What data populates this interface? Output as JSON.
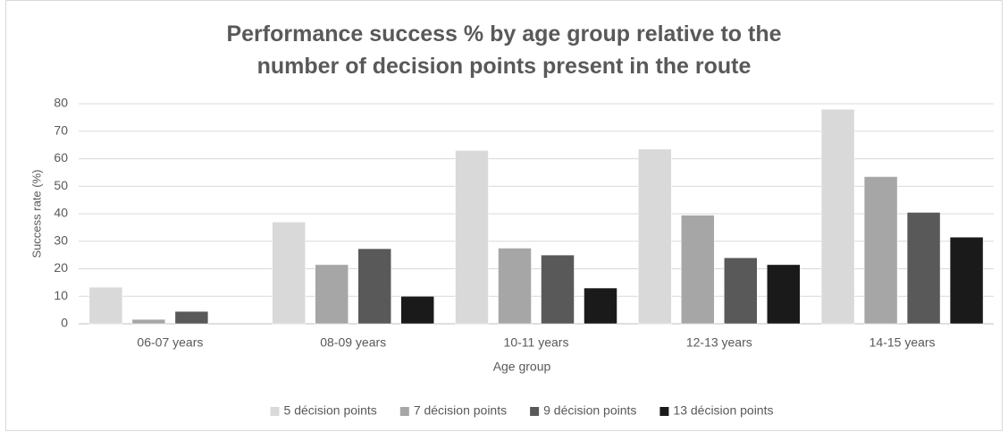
{
  "chart_data": {
    "type": "bar",
    "title": "Performance success % by age group relative to the number of decision points present in the route",
    "x_label": "Age group",
    "y_label": "Success rate (%)",
    "categories": [
      "06-07 years",
      "08-09 years",
      "10-11 years",
      "12-13 years",
      "14-15 years"
    ],
    "series": [
      {
        "name": "5 décision points",
        "color": "#d9d9d9",
        "values": [
          13.3,
          37,
          63,
          63.5,
          78
        ]
      },
      {
        "name": "7 décision points",
        "color": "#a6a6a6",
        "values": [
          1.6,
          21.5,
          27.5,
          39.5,
          53.5
        ]
      },
      {
        "name": "9 décision points",
        "color": "#595959",
        "values": [
          4.5,
          27.3,
          25,
          24,
          40.5
        ]
      },
      {
        "name": "13 décision points",
        "color": "#1a1a1a",
        "values": [
          0,
          10,
          13,
          21.5,
          31.5
        ]
      }
    ],
    "ylim": [
      0,
      80
    ],
    "yticks": [
      0,
      10,
      20,
      30,
      40,
      50,
      60,
      70,
      80
    ],
    "grid": true,
    "legend": "bottom"
  }
}
